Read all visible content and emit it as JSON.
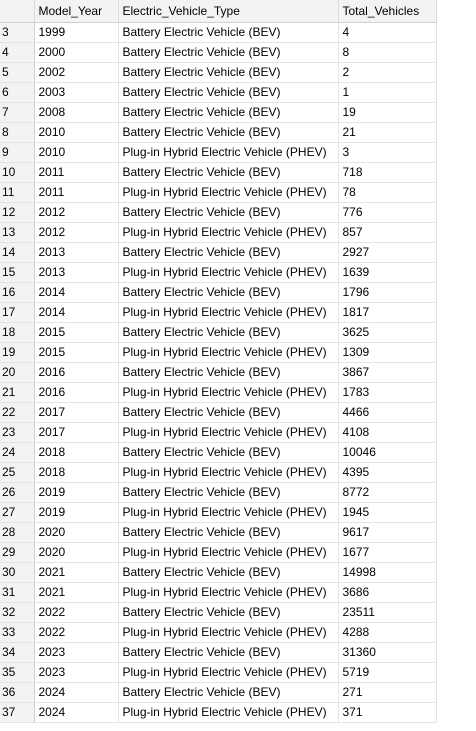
{
  "grid": {
    "columns": [
      "Model_Year",
      "Electric_Vehicle_Type",
      "Total_Vehicles"
    ],
    "rows": [
      {
        "num": "3",
        "year": "1999",
        "type": "Battery Electric Vehicle (BEV)",
        "total": "4"
      },
      {
        "num": "4",
        "year": "2000",
        "type": "Battery Electric Vehicle (BEV)",
        "total": "8"
      },
      {
        "num": "5",
        "year": "2002",
        "type": "Battery Electric Vehicle (BEV)",
        "total": "2"
      },
      {
        "num": "6",
        "year": "2003",
        "type": "Battery Electric Vehicle (BEV)",
        "total": "1"
      },
      {
        "num": "7",
        "year": "2008",
        "type": "Battery Electric Vehicle (BEV)",
        "total": "19"
      },
      {
        "num": "8",
        "year": "2010",
        "type": "Battery Electric Vehicle (BEV)",
        "total": "21"
      },
      {
        "num": "9",
        "year": "2010",
        "type": "Plug-in Hybrid Electric Vehicle (PHEV)",
        "total": "3"
      },
      {
        "num": "10",
        "year": "2011",
        "type": "Battery Electric Vehicle (BEV)",
        "total": "718"
      },
      {
        "num": "11",
        "year": "2011",
        "type": "Plug-in Hybrid Electric Vehicle (PHEV)",
        "total": "78"
      },
      {
        "num": "12",
        "year": "2012",
        "type": "Battery Electric Vehicle (BEV)",
        "total": "776"
      },
      {
        "num": "13",
        "year": "2012",
        "type": "Plug-in Hybrid Electric Vehicle (PHEV)",
        "total": "857"
      },
      {
        "num": "14",
        "year": "2013",
        "type": "Battery Electric Vehicle (BEV)",
        "total": "2927"
      },
      {
        "num": "15",
        "year": "2013",
        "type": "Plug-in Hybrid Electric Vehicle (PHEV)",
        "total": "1639"
      },
      {
        "num": "16",
        "year": "2014",
        "type": "Battery Electric Vehicle (BEV)",
        "total": "1796"
      },
      {
        "num": "17",
        "year": "2014",
        "type": "Plug-in Hybrid Electric Vehicle (PHEV)",
        "total": "1817"
      },
      {
        "num": "18",
        "year": "2015",
        "type": "Battery Electric Vehicle (BEV)",
        "total": "3625"
      },
      {
        "num": "19",
        "year": "2015",
        "type": "Plug-in Hybrid Electric Vehicle (PHEV)",
        "total": "1309"
      },
      {
        "num": "20",
        "year": "2016",
        "type": "Battery Electric Vehicle (BEV)",
        "total": "3867"
      },
      {
        "num": "21",
        "year": "2016",
        "type": "Plug-in Hybrid Electric Vehicle (PHEV)",
        "total": "1783"
      },
      {
        "num": "22",
        "year": "2017",
        "type": "Battery Electric Vehicle (BEV)",
        "total": "4466"
      },
      {
        "num": "23",
        "year": "2017",
        "type": "Plug-in Hybrid Electric Vehicle (PHEV)",
        "total": "4108"
      },
      {
        "num": "24",
        "year": "2018",
        "type": "Battery Electric Vehicle (BEV)",
        "total": "10046"
      },
      {
        "num": "25",
        "year": "2018",
        "type": "Plug-in Hybrid Electric Vehicle (PHEV)",
        "total": "4395"
      },
      {
        "num": "26",
        "year": "2019",
        "type": "Battery Electric Vehicle (BEV)",
        "total": "8772"
      },
      {
        "num": "27",
        "year": "2019",
        "type": "Plug-in Hybrid Electric Vehicle (PHEV)",
        "total": "1945"
      },
      {
        "num": "28",
        "year": "2020",
        "type": "Battery Electric Vehicle (BEV)",
        "total": "9617"
      },
      {
        "num": "29",
        "year": "2020",
        "type": "Plug-in Hybrid Electric Vehicle (PHEV)",
        "total": "1677"
      },
      {
        "num": "30",
        "year": "2021",
        "type": "Battery Electric Vehicle (BEV)",
        "total": "14998"
      },
      {
        "num": "31",
        "year": "2021",
        "type": "Plug-in Hybrid Electric Vehicle (PHEV)",
        "total": "3686"
      },
      {
        "num": "32",
        "year": "2022",
        "type": "Battery Electric Vehicle (BEV)",
        "total": "23511"
      },
      {
        "num": "33",
        "year": "2022",
        "type": "Plug-in Hybrid Electric Vehicle (PHEV)",
        "total": "4288"
      },
      {
        "num": "34",
        "year": "2023",
        "type": "Battery Electric Vehicle (BEV)",
        "total": "31360"
      },
      {
        "num": "35",
        "year": "2023",
        "type": "Plug-in Hybrid Electric Vehicle (PHEV)",
        "total": "5719"
      },
      {
        "num": "36",
        "year": "2024",
        "type": "Battery Electric Vehicle (BEV)",
        "total": "271"
      },
      {
        "num": "37",
        "year": "2024",
        "type": "Plug-in Hybrid Electric Vehicle (PHEV)",
        "total": "371"
      }
    ]
  }
}
